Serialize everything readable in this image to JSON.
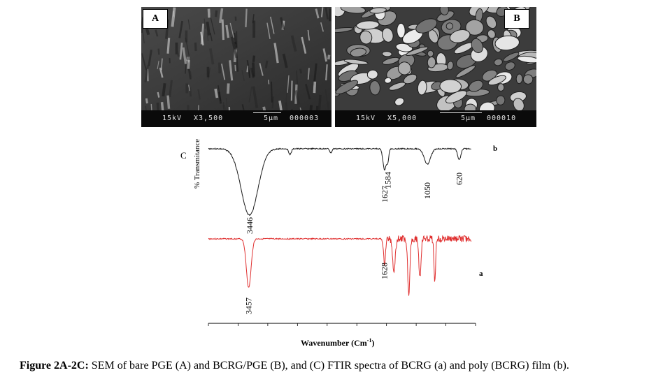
{
  "figure": {
    "caption_label": "Figure 2A-2C:",
    "caption_text": " SEM of bare PGE (A) and BCRG/PGE (B), and (C) FTIR spectra of BCRG (a) and poly (BCRG) film (b)."
  },
  "sem_a": {
    "label": "A",
    "voltage": "15kV",
    "magnification": "X3,500",
    "scale": "5μm",
    "image_no": "000003"
  },
  "sem_b": {
    "label": "B",
    "voltage": "15kV",
    "magnification": "X5,000",
    "scale": "5μm",
    "image_no": "000010"
  },
  "chart_data": {
    "type": "line",
    "panel_label": "C",
    "xlabel": "Wavenumber (Cm",
    "xlabel_sup": "-1",
    "xlabel_close": ")",
    "ylabel": "% Transmitance",
    "x_axis": "reversed",
    "xlim": [
      4000,
      400
    ],
    "series": [
      {
        "name": "b",
        "color": "#1a1a1a",
        "peaks": [
          {
            "x": 3446,
            "label": "3446"
          },
          {
            "x": 1627,
            "label": "1627"
          },
          {
            "x": 1584,
            "label": "1584"
          },
          {
            "x": 1050,
            "label": "1050"
          },
          {
            "x": 620,
            "label": "620"
          }
        ]
      },
      {
        "name": "a",
        "color": "#e03030",
        "peaks": [
          {
            "x": 3457,
            "label": "3457"
          },
          {
            "x": 1628,
            "label": "1628"
          }
        ]
      }
    ]
  }
}
